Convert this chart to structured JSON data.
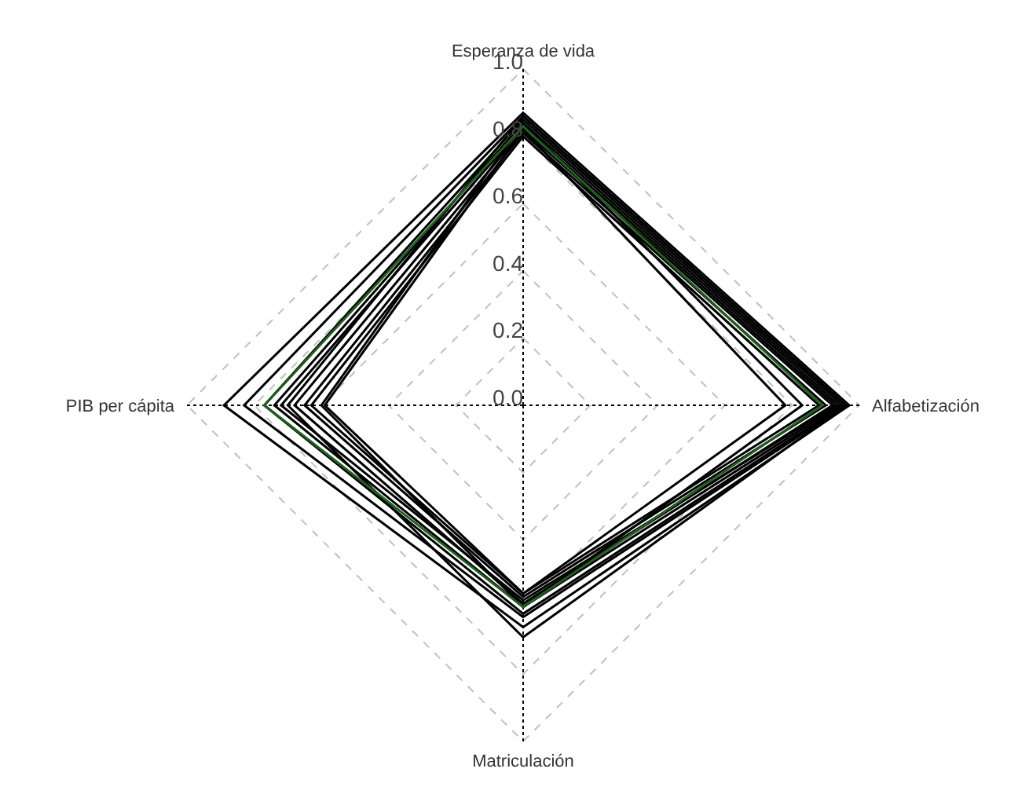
{
  "chart_data": {
    "type": "radar",
    "categories": [
      "Esperanza de vida",
      "Alfabetización",
      "Matriculación",
      "PIB per cápita"
    ],
    "ylim": [
      0,
      1
    ],
    "yticks": [
      {
        "value": 0,
        "label": "0.0"
      },
      {
        "value": 0.2,
        "label": "0.2"
      },
      {
        "value": 0.4,
        "label": "0.4"
      },
      {
        "value": 0.6,
        "label": "0.6"
      },
      {
        "value": 0.8,
        "label": "0.8"
      },
      {
        "value": 1,
        "label": "1.0"
      }
    ],
    "grid": true,
    "series": [
      {
        "color": "#000000",
        "values": [
          0.87,
          0.97,
          0.66,
          0.89
        ]
      },
      {
        "color": "#000000",
        "values": [
          0.86,
          0.96,
          0.63,
          0.83
        ]
      },
      {
        "color": "#000000",
        "values": [
          0.85,
          0.95,
          0.62,
          0.77
        ]
      },
      {
        "color": "#000000",
        "values": [
          0.84,
          0.94,
          0.6,
          0.74
        ]
      },
      {
        "color": "#000000",
        "values": [
          0.83,
          0.93,
          0.58,
          0.72
        ]
      },
      {
        "color": "#000000",
        "values": [
          0.82,
          0.92,
          0.59,
          0.68
        ]
      },
      {
        "color": "#000000",
        "values": [
          0.81,
          0.9,
          0.57,
          0.65
        ]
      },
      {
        "color": "#000000",
        "values": [
          0.8,
          0.88,
          0.56,
          0.63
        ]
      },
      {
        "color": "#000000",
        "values": [
          0.84,
          0.83,
          0.6,
          0.6
        ]
      },
      {
        "color": "#000000",
        "values": [
          0.82,
          0.78,
          0.56,
          0.59
        ]
      },
      {
        "color": "#000000",
        "values": [
          0.86,
          0.96,
          0.69,
          0.7
        ]
      },
      {
        "color": "#1f5f1f",
        "values": [
          0.83,
          0.89,
          0.6,
          0.77
        ]
      }
    ]
  }
}
